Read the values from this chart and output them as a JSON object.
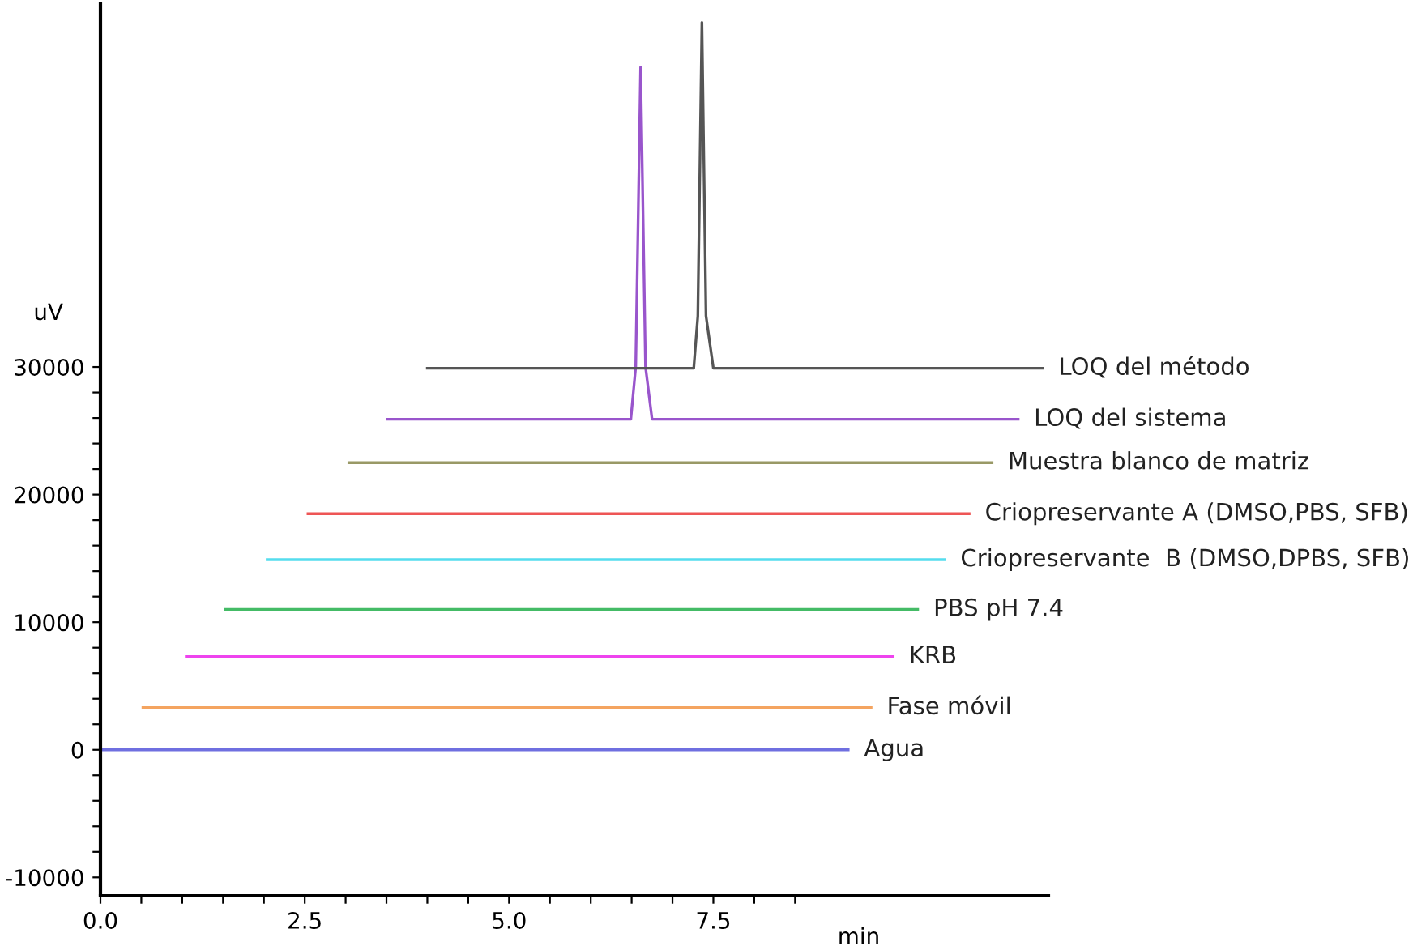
{
  "chart_data": {
    "type": "line",
    "xlabel": "min",
    "ylabel": "uV",
    "xlim": [
      0,
      11.6
    ],
    "ylim": [
      -11440,
      58500
    ],
    "xticks": [
      {
        "value": 0,
        "label": "0.0"
      },
      {
        "value": 0.5,
        "label": null
      },
      {
        "value": 1,
        "label": null
      },
      {
        "value": 1.5,
        "label": null
      },
      {
        "value": 2,
        "label": null
      },
      {
        "value": 2.5,
        "label": "2.5"
      },
      {
        "value": 3,
        "label": null
      },
      {
        "value": 3.5,
        "label": null
      },
      {
        "value": 4,
        "label": null
      },
      {
        "value": 4.5,
        "label": null
      },
      {
        "value": 5,
        "label": "5.0"
      },
      {
        "value": 5.5,
        "label": null
      },
      {
        "value": 6,
        "label": null
      },
      {
        "value": 6.5,
        "label": null
      },
      {
        "value": 7,
        "label": null
      },
      {
        "value": 7.5,
        "label": "7.5"
      },
      {
        "value": 8,
        "label": null
      },
      {
        "value": 8.5,
        "label": null
      }
    ],
    "yticks": [
      {
        "value": -10000,
        "label": "-10000"
      },
      {
        "value": -8000,
        "label": null
      },
      {
        "value": -6000,
        "label": null
      },
      {
        "value": -4000,
        "label": null
      },
      {
        "value": -2000,
        "label": null
      },
      0,
      {
        "value": 2000,
        "label": null
      },
      {
        "value": 4000,
        "label": null
      },
      {
        "value": 6000,
        "label": null
      },
      {
        "value": 8000,
        "label": null
      },
      10000,
      {
        "value": 12000,
        "label": null
      },
      {
        "value": 14000,
        "label": null
      },
      {
        "value": 16000,
        "label": null
      },
      {
        "value": 18000,
        "label": null
      },
      20000,
      {
        "value": 22000,
        "label": null
      },
      {
        "value": 24000,
        "label": null
      },
      {
        "value": 26000,
        "label": null
      },
      {
        "value": 28000,
        "label": null
      },
      30000
    ],
    "grid": false,
    "legend": false,
    "marker": "none",
    "line_style": "solid",
    "series": [
      {
        "name": "Agua",
        "color": "#6f6fe0",
        "x": [
          0,
          9.15
        ],
        "values": [
          0,
          0
        ]
      },
      {
        "name": "Fase móvil",
        "color": "#f4a460",
        "x": [
          0.52,
          9.43
        ],
        "values": [
          3300,
          3300
        ]
      },
      {
        "name": "KRB",
        "color": "#ee44ee",
        "x": [
          1.05,
          9.7
        ],
        "values": [
          7300,
          7300
        ]
      },
      {
        "name": "PBS pH 7.4",
        "color": "#44bb66",
        "x": [
          1.53,
          10.0
        ],
        "values": [
          11000,
          11000
        ]
      },
      {
        "name": "Criopreservante  B (DMSO,DPBS, SFB)",
        "color": "#55ddee",
        "x": [
          2.04,
          10.33
        ],
        "values": [
          14900,
          14900
        ]
      },
      {
        "name": "Criopreservante A (DMSO,PBS, SFB)",
        "color": "#ee5555",
        "x": [
          2.54,
          10.63
        ],
        "values": [
          18500,
          18500
        ]
      },
      {
        "name": "Muestra blanco de matriz",
        "color": "#999966",
        "x": [
          3.04,
          10.91
        ],
        "values": [
          22500,
          22500
        ]
      },
      {
        "name": "LOQ del sistema",
        "color": "#9955cc",
        "x": [
          3.51,
          6.49,
          6.55,
          6.61,
          6.67,
          6.75,
          11.23
        ],
        "values": [
          25900,
          25900,
          30000,
          53500,
          30000,
          25900,
          25900
        ]
      },
      {
        "name": "LOQ del método",
        "color": "#555555",
        "x": [
          4.0,
          7.26,
          7.31,
          7.36,
          7.41,
          7.5,
          11.53
        ],
        "values": [
          29900,
          29900,
          34000,
          57000,
          34000,
          29900,
          29900
        ]
      }
    ]
  }
}
